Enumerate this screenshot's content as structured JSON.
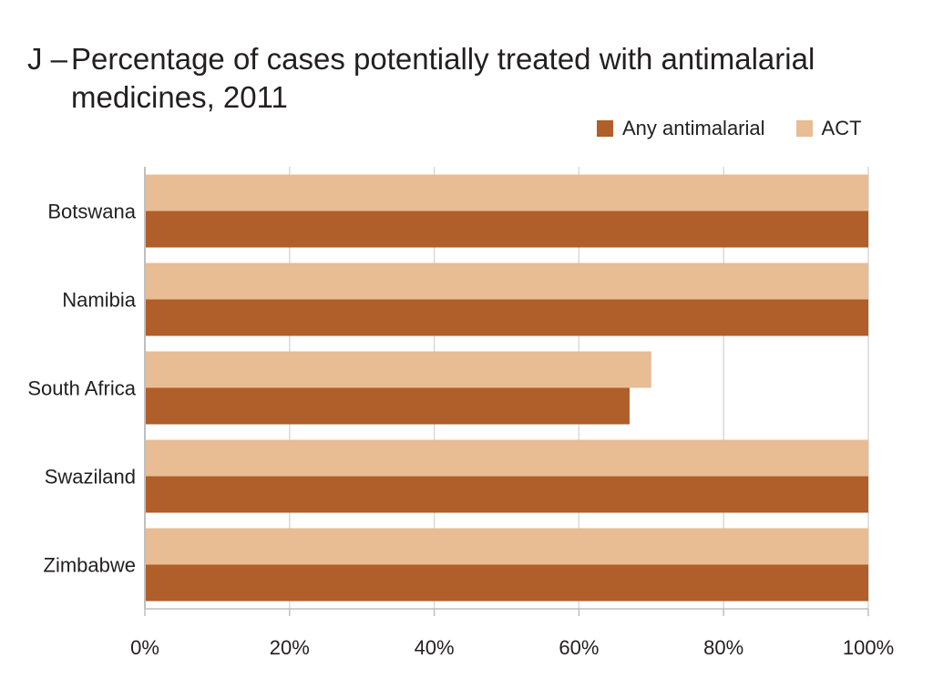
{
  "title": {
    "prefix": "J –",
    "line1": "Percentage of cases potentially treated with antimalarial",
    "line2": "medicines, 2011"
  },
  "colors": {
    "any_antimalarial": "#b05e2a",
    "act": "#e8bd93",
    "grid": "#d9d9d9",
    "axis": "#bfbfbf"
  },
  "chart_data": {
    "type": "bar",
    "orientation": "horizontal",
    "categories": [
      "Botswana",
      "Namibia",
      "South Africa",
      "Swaziland",
      "Zimbabwe"
    ],
    "series": [
      {
        "name": "ACT",
        "values": [
          100,
          100,
          70,
          100,
          100
        ]
      },
      {
        "name": "Any antimalarial",
        "values": [
          100,
          100,
          67,
          100,
          100
        ]
      }
    ],
    "xlim": [
      0,
      100
    ],
    "xticks": [
      "0%",
      "20%",
      "40%",
      "60%",
      "80%",
      "100%"
    ],
    "xtick_values": [
      0,
      20,
      40,
      60,
      80,
      100
    ],
    "grid": true,
    "legend_position": "top-right",
    "legend": [
      "Any antimalarial",
      "ACT"
    ]
  }
}
